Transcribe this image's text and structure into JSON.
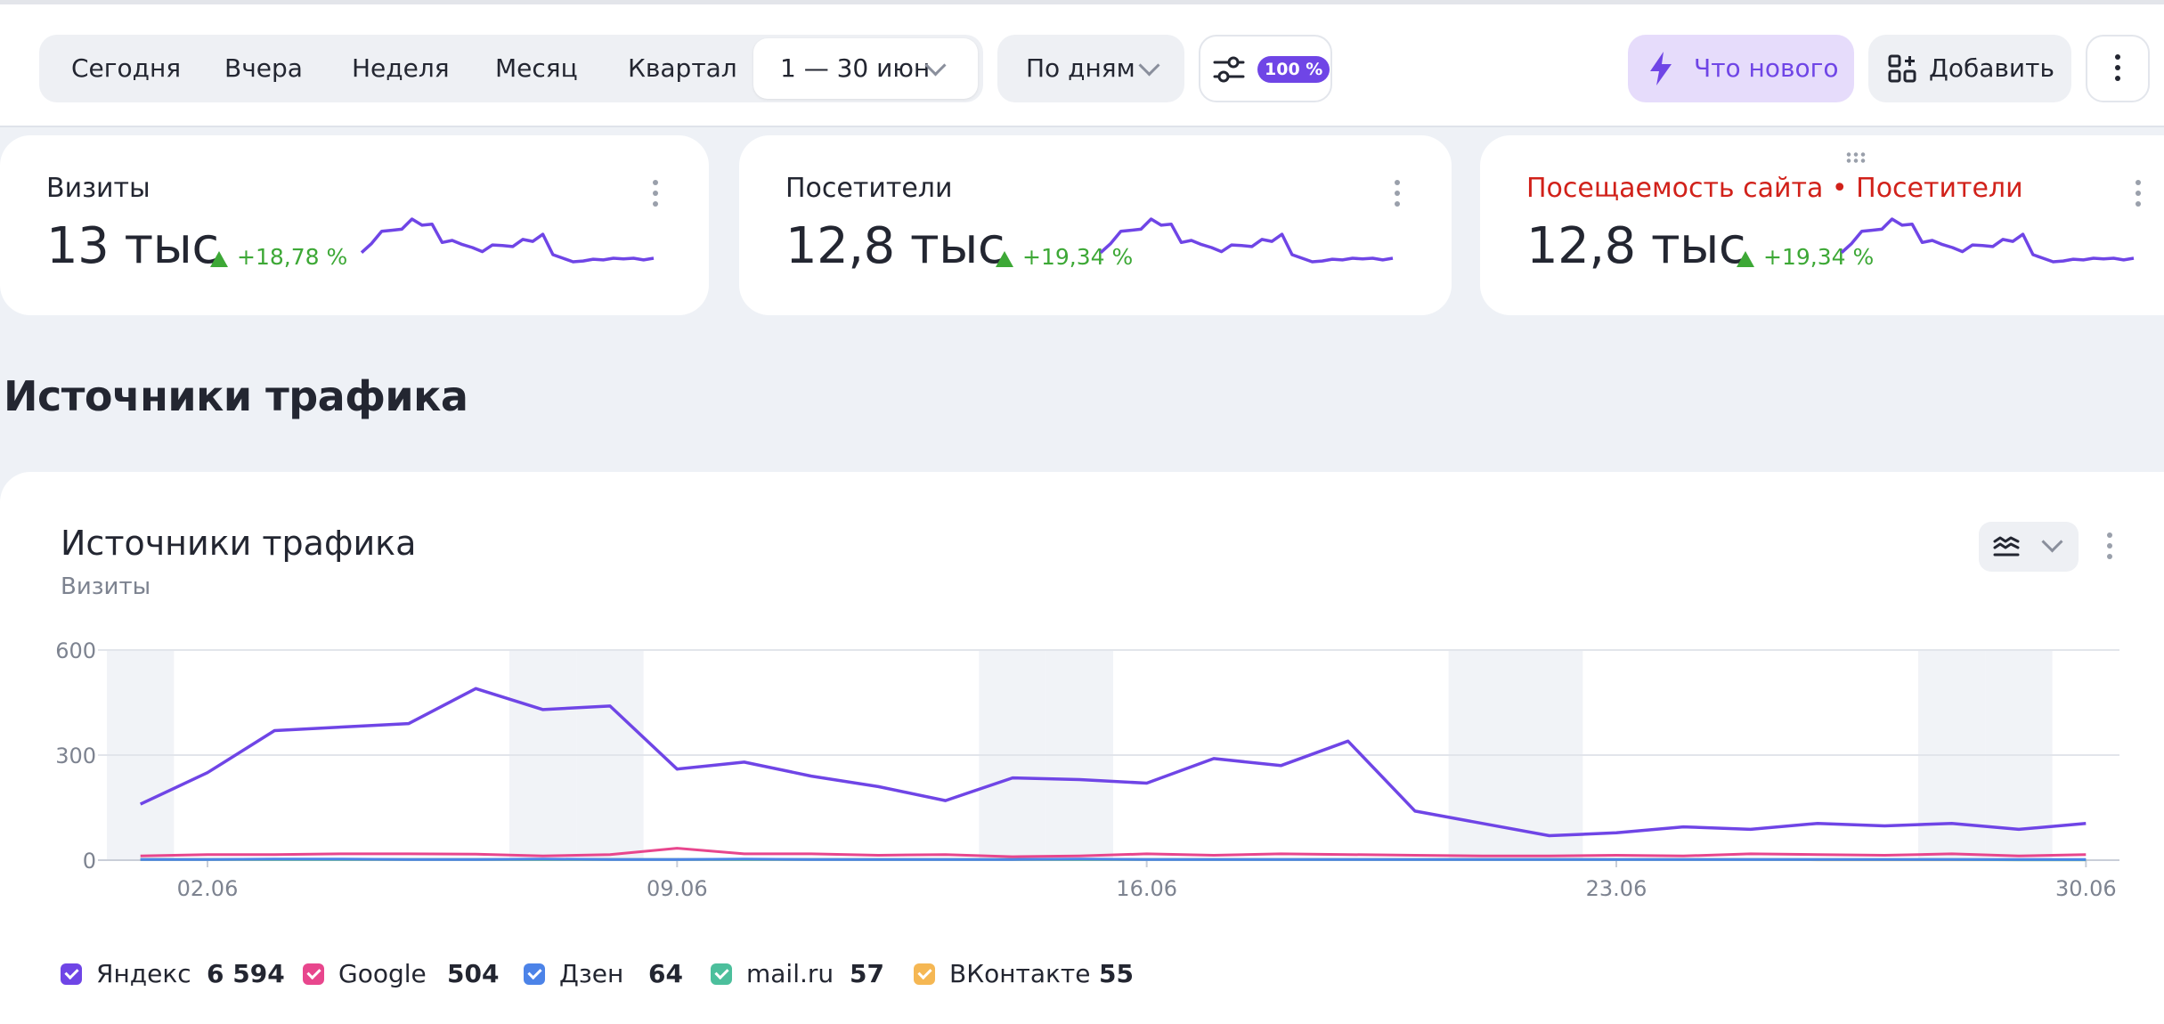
{
  "toolbar": {
    "periods": [
      "Сегодня",
      "Вчера",
      "Неделя",
      "Месяц",
      "Квартал"
    ],
    "date_range": "1 — 30 июн",
    "grouping": "По дням",
    "sampling_badge": "100 %",
    "whats_new": "Что нового",
    "add": "Добавить",
    "icons": {
      "filter": "sliders-icon",
      "whats_new": "lightning-icon",
      "add": "widgets-add-icon",
      "more": "vertical-dots-icon"
    }
  },
  "colors": {
    "accent": "#6f45e6",
    "accent_bg": "#e6dcfb",
    "positive": "#3da836",
    "alert_title": "#d1211a"
  },
  "cards": [
    {
      "title": "Визиты",
      "value": "13 тыс",
      "change": "+18,78 %"
    },
    {
      "title": "Посетители",
      "value": "12,8 тыс",
      "change": "+19,34 %"
    },
    {
      "title": "Посещаемость сайта • Посетители",
      "value": "12,8 тыс",
      "change": "+19,34 %"
    }
  ],
  "sparkline_values": [
    160,
    250,
    370,
    380,
    390,
    490,
    430,
    440,
    260,
    280,
    240,
    210,
    170,
    235,
    230,
    220,
    290,
    270,
    340,
    140,
    105,
    70,
    78,
    95,
    88,
    105,
    98,
    105,
    88,
    105
  ],
  "section_title": "Источники трафика",
  "panel": {
    "title": "Источники трафика",
    "subtitle": "Визиты"
  },
  "chart_data": {
    "type": "line",
    "title": "Источники трафика",
    "ylabel": "Визиты",
    "x": [
      "01.06",
      "02.06",
      "03.06",
      "04.06",
      "05.06",
      "06.06",
      "07.06",
      "08.06",
      "09.06",
      "10.06",
      "11.06",
      "12.06",
      "13.06",
      "14.06",
      "15.06",
      "16.06",
      "17.06",
      "18.06",
      "19.06",
      "20.06",
      "21.06",
      "22.06",
      "23.06",
      "24.06",
      "25.06",
      "26.06",
      "27.06",
      "28.06",
      "29.06",
      "30.06"
    ],
    "x_tick_labels": [
      "02.06",
      "09.06",
      "16.06",
      "23.06",
      "30.06"
    ],
    "y_ticks": [
      0,
      300,
      600
    ],
    "ylim": [
      0,
      600
    ],
    "weekend_days": [
      "01.06",
      "07.06",
      "08.06",
      "14.06",
      "15.06",
      "21.06",
      "22.06",
      "28.06",
      "29.06"
    ],
    "series": [
      {
        "name": "Яндекс",
        "total": "6 594",
        "color": "#6f45e6",
        "values": [
          160,
          250,
          370,
          380,
          390,
          490,
          430,
          440,
          260,
          280,
          240,
          210,
          170,
          235,
          230,
          220,
          290,
          270,
          340,
          140,
          105,
          70,
          78,
          95,
          88,
          105,
          98,
          105,
          88,
          105
        ]
      },
      {
        "name": "Google",
        "total": "504",
        "color": "#e8468d",
        "values": [
          12,
          16,
          16,
          18,
          18,
          17,
          12,
          16,
          34,
          18,
          18,
          14,
          16,
          10,
          12,
          18,
          14,
          18,
          16,
          14,
          12,
          12,
          14,
          12,
          18,
          16,
          14,
          18,
          12,
          16
        ]
      },
      {
        "name": "Дзен",
        "total": "64",
        "color": "#4c83e8",
        "values": [
          2,
          2,
          3,
          3,
          2,
          2,
          3,
          2,
          2,
          3,
          2,
          2,
          2,
          2,
          3,
          2,
          2,
          2,
          2,
          2,
          2,
          2,
          2,
          2,
          2,
          2,
          2,
          2,
          2,
          2
        ]
      },
      {
        "name": "mail.ru",
        "total": "57",
        "color": "#4cbf9c",
        "values": [
          2,
          2,
          2,
          2,
          2,
          2,
          2,
          2,
          2,
          2,
          2,
          2,
          2,
          2,
          2,
          2,
          2,
          2,
          2,
          2,
          2,
          2,
          2,
          2,
          2,
          2,
          2,
          2,
          1,
          1
        ]
      },
      {
        "name": "ВКонтакте",
        "total": "55",
        "color": "#f5b753",
        "values": [
          2,
          2,
          2,
          2,
          2,
          2,
          2,
          2,
          2,
          2,
          2,
          2,
          2,
          2,
          2,
          2,
          2,
          2,
          2,
          2,
          2,
          2,
          2,
          2,
          2,
          1,
          1,
          1,
          1,
          1
        ]
      }
    ]
  }
}
